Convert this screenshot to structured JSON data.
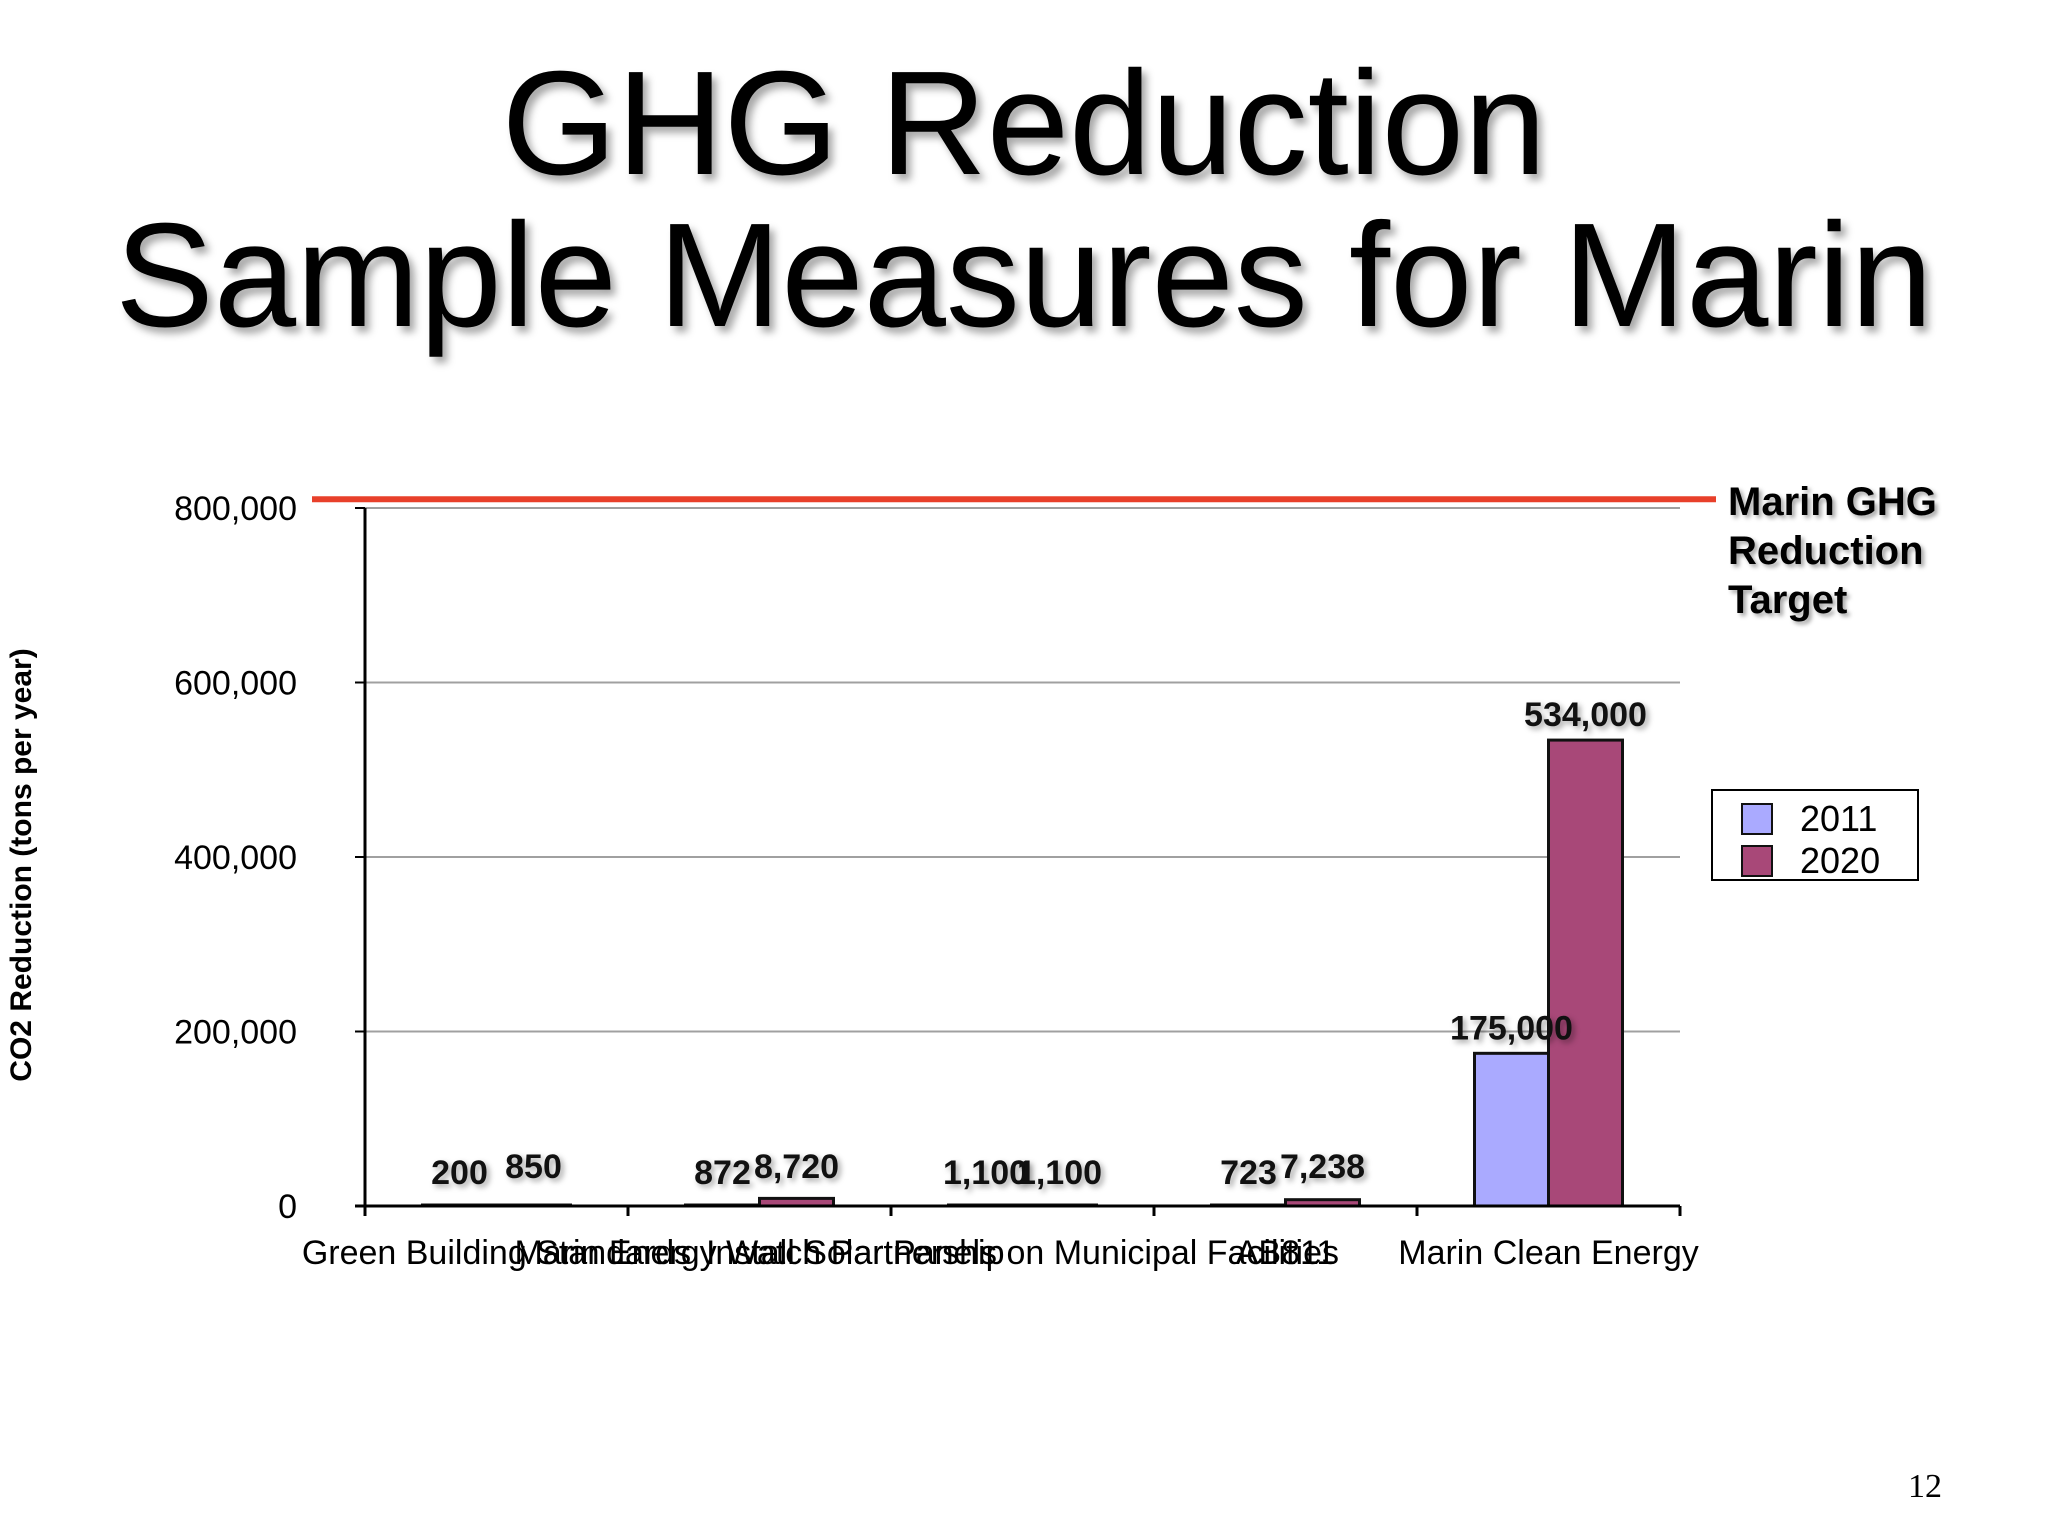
{
  "slide": {
    "title_line1": "GHG Reduction",
    "title_line2": "Sample Measures for Marin",
    "target_label": [
      "Marin GHG",
      "Reduction",
      "Target"
    ],
    "page_number": "12"
  },
  "chart_data": {
    "type": "bar",
    "title": "",
    "xlabel": "",
    "ylabel": "CO2 Reduction (tons per year)",
    "ylim": [
      0,
      800000
    ],
    "yticks": [
      0,
      200000,
      400000,
      600000,
      800000
    ],
    "ytick_labels": [
      "0",
      "200,000",
      "400,000",
      "600,000",
      "800,000"
    ],
    "grid": true,
    "legend_position": "right",
    "categories": [
      "Green Building Standards",
      "Marin Energy Watch Partnership",
      "Install Solar Panels on Municipal Facilities",
      "AB811",
      "Marin Clean Energy"
    ],
    "series": [
      {
        "name": "2011",
        "color": "#aaaaff",
        "values": [
          200,
          872,
          1100,
          723,
          175000
        ],
        "labels": [
          "200",
          "872",
          "1,100",
          "723",
          "175,000"
        ]
      },
      {
        "name": "2020",
        "color": "#a84878",
        "values": [
          850,
          8720,
          1100,
          7238,
          534000
        ],
        "labels": [
          "850",
          "8,720",
          "1,100",
          "7,238",
          "534,000"
        ]
      }
    ],
    "target_line": {
      "value": 810000,
      "color": "#e8402a"
    }
  }
}
